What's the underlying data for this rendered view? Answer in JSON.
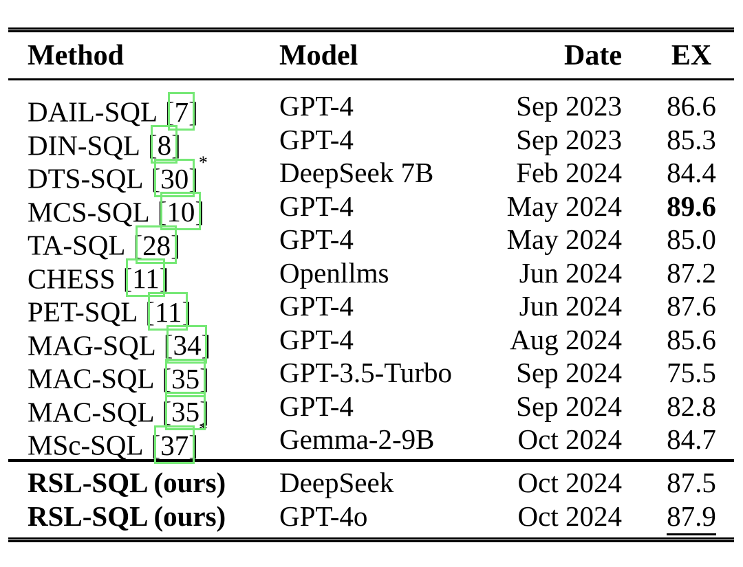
{
  "page": {
    "background": "#ffffff",
    "text_color": "#000000"
  },
  "annotations": {
    "citation_link_box_color": "#75e875",
    "description": "green link-annotation boxes drawn around each bracketed citation number"
  },
  "table": {
    "headers": {
      "method": "Method",
      "model": "Model",
      "date": "Date",
      "ex": "EX"
    },
    "rows": [
      {
        "method": "DAIL-SQL",
        "cite": "[7]",
        "star": "",
        "model": "GPT-4",
        "date": "Sep 2023",
        "ex": "86.6",
        "ex_emphasis": ""
      },
      {
        "method": "DIN-SQL",
        "cite": "[8]",
        "star": "",
        "model": "GPT-4",
        "date": "Sep 2023",
        "ex": "85.3",
        "ex_emphasis": ""
      },
      {
        "method": "DTS-SQL",
        "cite": "[30]",
        "star": "*",
        "model": "DeepSeek 7B",
        "date": "Feb 2024",
        "ex": "84.4",
        "ex_emphasis": ""
      },
      {
        "method": "MCS-SQL",
        "cite": "[10]",
        "star": "",
        "model": "GPT-4",
        "date": "May 2024",
        "ex": "89.6",
        "ex_emphasis": "bold"
      },
      {
        "method": "TA-SQL",
        "cite": "[28]",
        "star": "",
        "model": "GPT-4",
        "date": "May 2024",
        "ex": "85.0",
        "ex_emphasis": ""
      },
      {
        "method": "CHESS",
        "cite": "[11]",
        "star": "",
        "model": "Openllms",
        "date": "Jun 2024",
        "ex": "87.2",
        "ex_emphasis": ""
      },
      {
        "method": "PET-SQL",
        "cite": "[11]",
        "star": "",
        "model": "GPT-4",
        "date": "Jun 2024",
        "ex": "87.6",
        "ex_emphasis": ""
      },
      {
        "method": "MAG-SQL",
        "cite": "[34]",
        "star": "",
        "model": "GPT-4",
        "date": "Aug 2024",
        "ex": "85.6",
        "ex_emphasis": ""
      },
      {
        "method": "MAC-SQL",
        "cite": "[35]",
        "star": "",
        "model": "GPT-3.5-Turbo",
        "date": "Sep 2024",
        "ex": "75.5",
        "ex_emphasis": ""
      },
      {
        "method": "MAC-SQL",
        "cite": "[35]",
        "star": "",
        "model": "GPT-4",
        "date": "Sep 2024",
        "ex": "82.8",
        "ex_emphasis": ""
      },
      {
        "method": "MSc-SQL",
        "cite": "[37]",
        "star": "*",
        "model": "Gemma-2-9B",
        "date": "Oct 2024",
        "ex": "84.7",
        "ex_emphasis": ""
      }
    ],
    "ours_rows": [
      {
        "method": "RSL-SQL (ours)",
        "model": "DeepSeek",
        "date": "Oct 2024",
        "ex": "87.5",
        "ex_emphasis": ""
      },
      {
        "method": "RSL-SQL (ours)",
        "model": "GPT-4o",
        "date": "Oct 2024",
        "ex": "87.9",
        "ex_emphasis": "underline"
      }
    ]
  }
}
